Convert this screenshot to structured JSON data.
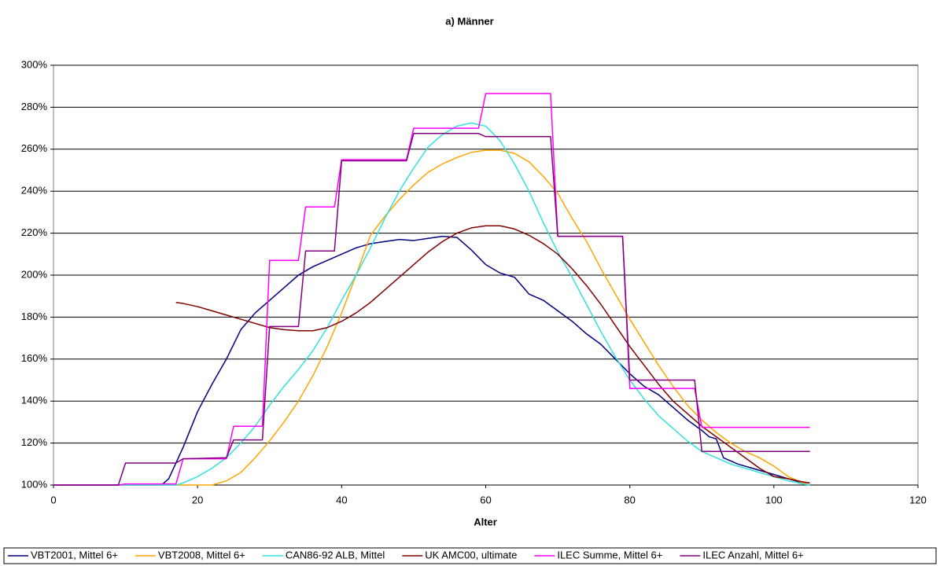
{
  "chart_data": {
    "type": "line",
    "title": "a) Männer",
    "x_label": "Alter",
    "xlim": [
      0,
      120
    ],
    "xticks": [
      0,
      20,
      40,
      60,
      80,
      100,
      120
    ],
    "ylim": [
      100,
      300
    ],
    "yticks": [
      {
        "value": 100,
        "label": "100%"
      },
      {
        "value": 120,
        "label": "120%"
      },
      {
        "value": 140,
        "label": "140%"
      },
      {
        "value": 160,
        "label": "160%"
      },
      {
        "value": 180,
        "label": "180%"
      },
      {
        "value": 200,
        "label": "200%"
      },
      {
        "value": 220,
        "label": "220%"
      },
      {
        "value": 240,
        "label": "240%"
      },
      {
        "value": 260,
        "label": "260%"
      },
      {
        "value": 280,
        "label": "280%"
      },
      {
        "value": 300,
        "label": "300%"
      }
    ],
    "grid": true,
    "legend": "bottom",
    "series": [
      {
        "name": "VBT2001, Mittel 6+",
        "color": "#000080",
        "x": [
          0,
          15,
          16,
          18,
          20,
          22,
          24,
          26,
          28,
          30,
          32,
          34,
          36,
          38,
          40,
          42,
          44,
          46,
          48,
          50,
          52,
          54,
          56,
          58,
          60,
          62,
          64,
          66,
          68,
          70,
          72,
          74,
          76,
          78,
          80,
          82,
          84,
          86,
          88,
          90,
          91,
          92,
          93,
          95,
          97,
          100,
          103,
          105
        ],
        "values": [
          100,
          100,
          103,
          118,
          135,
          148,
          160,
          174,
          182,
          188,
          194,
          200,
          204,
          207,
          210,
          213,
          215,
          216,
          217,
          216.5,
          217.5,
          218.5,
          218,
          212,
          205,
          201,
          199,
          191,
          188,
          183,
          178,
          172,
          167,
          160,
          153,
          147,
          143,
          137,
          131,
          126,
          123,
          122,
          113,
          110,
          108,
          105,
          102,
          100
        ]
      },
      {
        "name": "VBT2008, Mittel 6+",
        "color": "#ffa500",
        "x": [
          0,
          22,
          24,
          26,
          28,
          30,
          32,
          34,
          36,
          38,
          40,
          42,
          44,
          46,
          48,
          50,
          52,
          54,
          56,
          58,
          60,
          62,
          64,
          66,
          68,
          70,
          72,
          74,
          76,
          78,
          80,
          82,
          84,
          86,
          88,
          90,
          92,
          94,
          96,
          98,
          100,
          102,
          104,
          105
        ],
        "values": [
          100,
          100,
          102,
          106,
          113,
          121,
          130,
          140,
          152,
          166,
          182,
          200,
          219,
          228,
          236,
          243,
          249,
          253,
          256,
          258.5,
          259.5,
          259.5,
          258,
          254,
          247,
          239,
          227,
          216,
          203,
          191,
          179,
          168,
          157,
          147,
          138,
          131,
          125,
          120,
          116,
          113,
          109,
          104,
          101,
          100
        ]
      },
      {
        "name": "CAN86-92 ALB, Mittel",
        "color": "#33e0e0",
        "x": [
          0,
          17,
          18,
          20,
          22,
          24,
          26,
          28,
          30,
          32,
          34,
          36,
          38,
          40,
          42,
          44,
          46,
          48,
          50,
          52,
          54,
          56,
          58,
          60,
          62,
          64,
          66,
          68,
          70,
          72,
          74,
          76,
          78,
          80,
          82,
          84,
          86,
          88,
          90,
          92,
          94,
          96,
          98,
          100,
          102,
          104,
          105
        ],
        "values": [
          100,
          100,
          101,
          104,
          108,
          113,
          120,
          128,
          138,
          147,
          155,
          164,
          175,
          188,
          200,
          213,
          227,
          240,
          251,
          261,
          267,
          271,
          272.5,
          271,
          264,
          253,
          240,
          225,
          211,
          199,
          186,
          173,
          161,
          150,
          141,
          133,
          127,
          121,
          116,
          113,
          110,
          108,
          106,
          104,
          102,
          100.5,
          100
        ]
      },
      {
        "name": "UK AMC00, ultimate",
        "color": "#800000",
        "x": [
          17,
          18,
          20,
          22,
          24,
          26,
          28,
          30,
          32,
          34,
          36,
          38,
          40,
          42,
          44,
          46,
          48,
          50,
          52,
          54,
          56,
          58,
          60,
          62,
          64,
          66,
          68,
          70,
          72,
          74,
          76,
          78,
          80,
          82,
          84,
          86,
          88,
          90,
          92,
          94,
          96,
          98,
          100,
          102,
          104,
          105
        ],
        "values": [
          187,
          186.5,
          185,
          183,
          181,
          179,
          177,
          175,
          174,
          173.5,
          173.5,
          175,
          178,
          182,
          187,
          193,
          199,
          205,
          211,
          216,
          220,
          222.5,
          223.5,
          223.5,
          222,
          219,
          215,
          210,
          203,
          195,
          186,
          176,
          166,
          157,
          148,
          140,
          134,
          128,
          123,
          118,
          113,
          108,
          104,
          103,
          101.5,
          101
        ]
      },
      {
        "name": "ILEC Summe, Mittel 6+",
        "color": "#ff00ff",
        "x": [
          0,
          9,
          10,
          17,
          18,
          24,
          25,
          29,
          30,
          34,
          35,
          39,
          40,
          49,
          50,
          59,
          60,
          69,
          70,
          79,
          80,
          89,
          90,
          105
        ],
        "values": [
          100,
          100,
          100.5,
          100.5,
          112.5,
          112.5,
          128,
          128,
          207,
          207,
          232.5,
          232.5,
          255,
          255,
          270,
          270,
          286.5,
          286.5,
          218.5,
          218.5,
          146,
          146,
          127.5,
          127.5
        ]
      },
      {
        "name": "ILEC Anzahl, Mittel 6+",
        "color": "#800080",
        "x": [
          0,
          9,
          10,
          17,
          18,
          24,
          25,
          29,
          30,
          34,
          35,
          39,
          40,
          49,
          50,
          59,
          60,
          69,
          70,
          79,
          80,
          89,
          90,
          105
        ],
        "values": [
          100,
          100,
          110.5,
          110.5,
          112.5,
          113,
          121.5,
          121.5,
          175.5,
          175.5,
          211.5,
          211.5,
          254.5,
          254.5,
          267.5,
          267.5,
          266,
          266,
          218.5,
          218.5,
          150,
          150,
          116,
          116
        ]
      }
    ]
  }
}
